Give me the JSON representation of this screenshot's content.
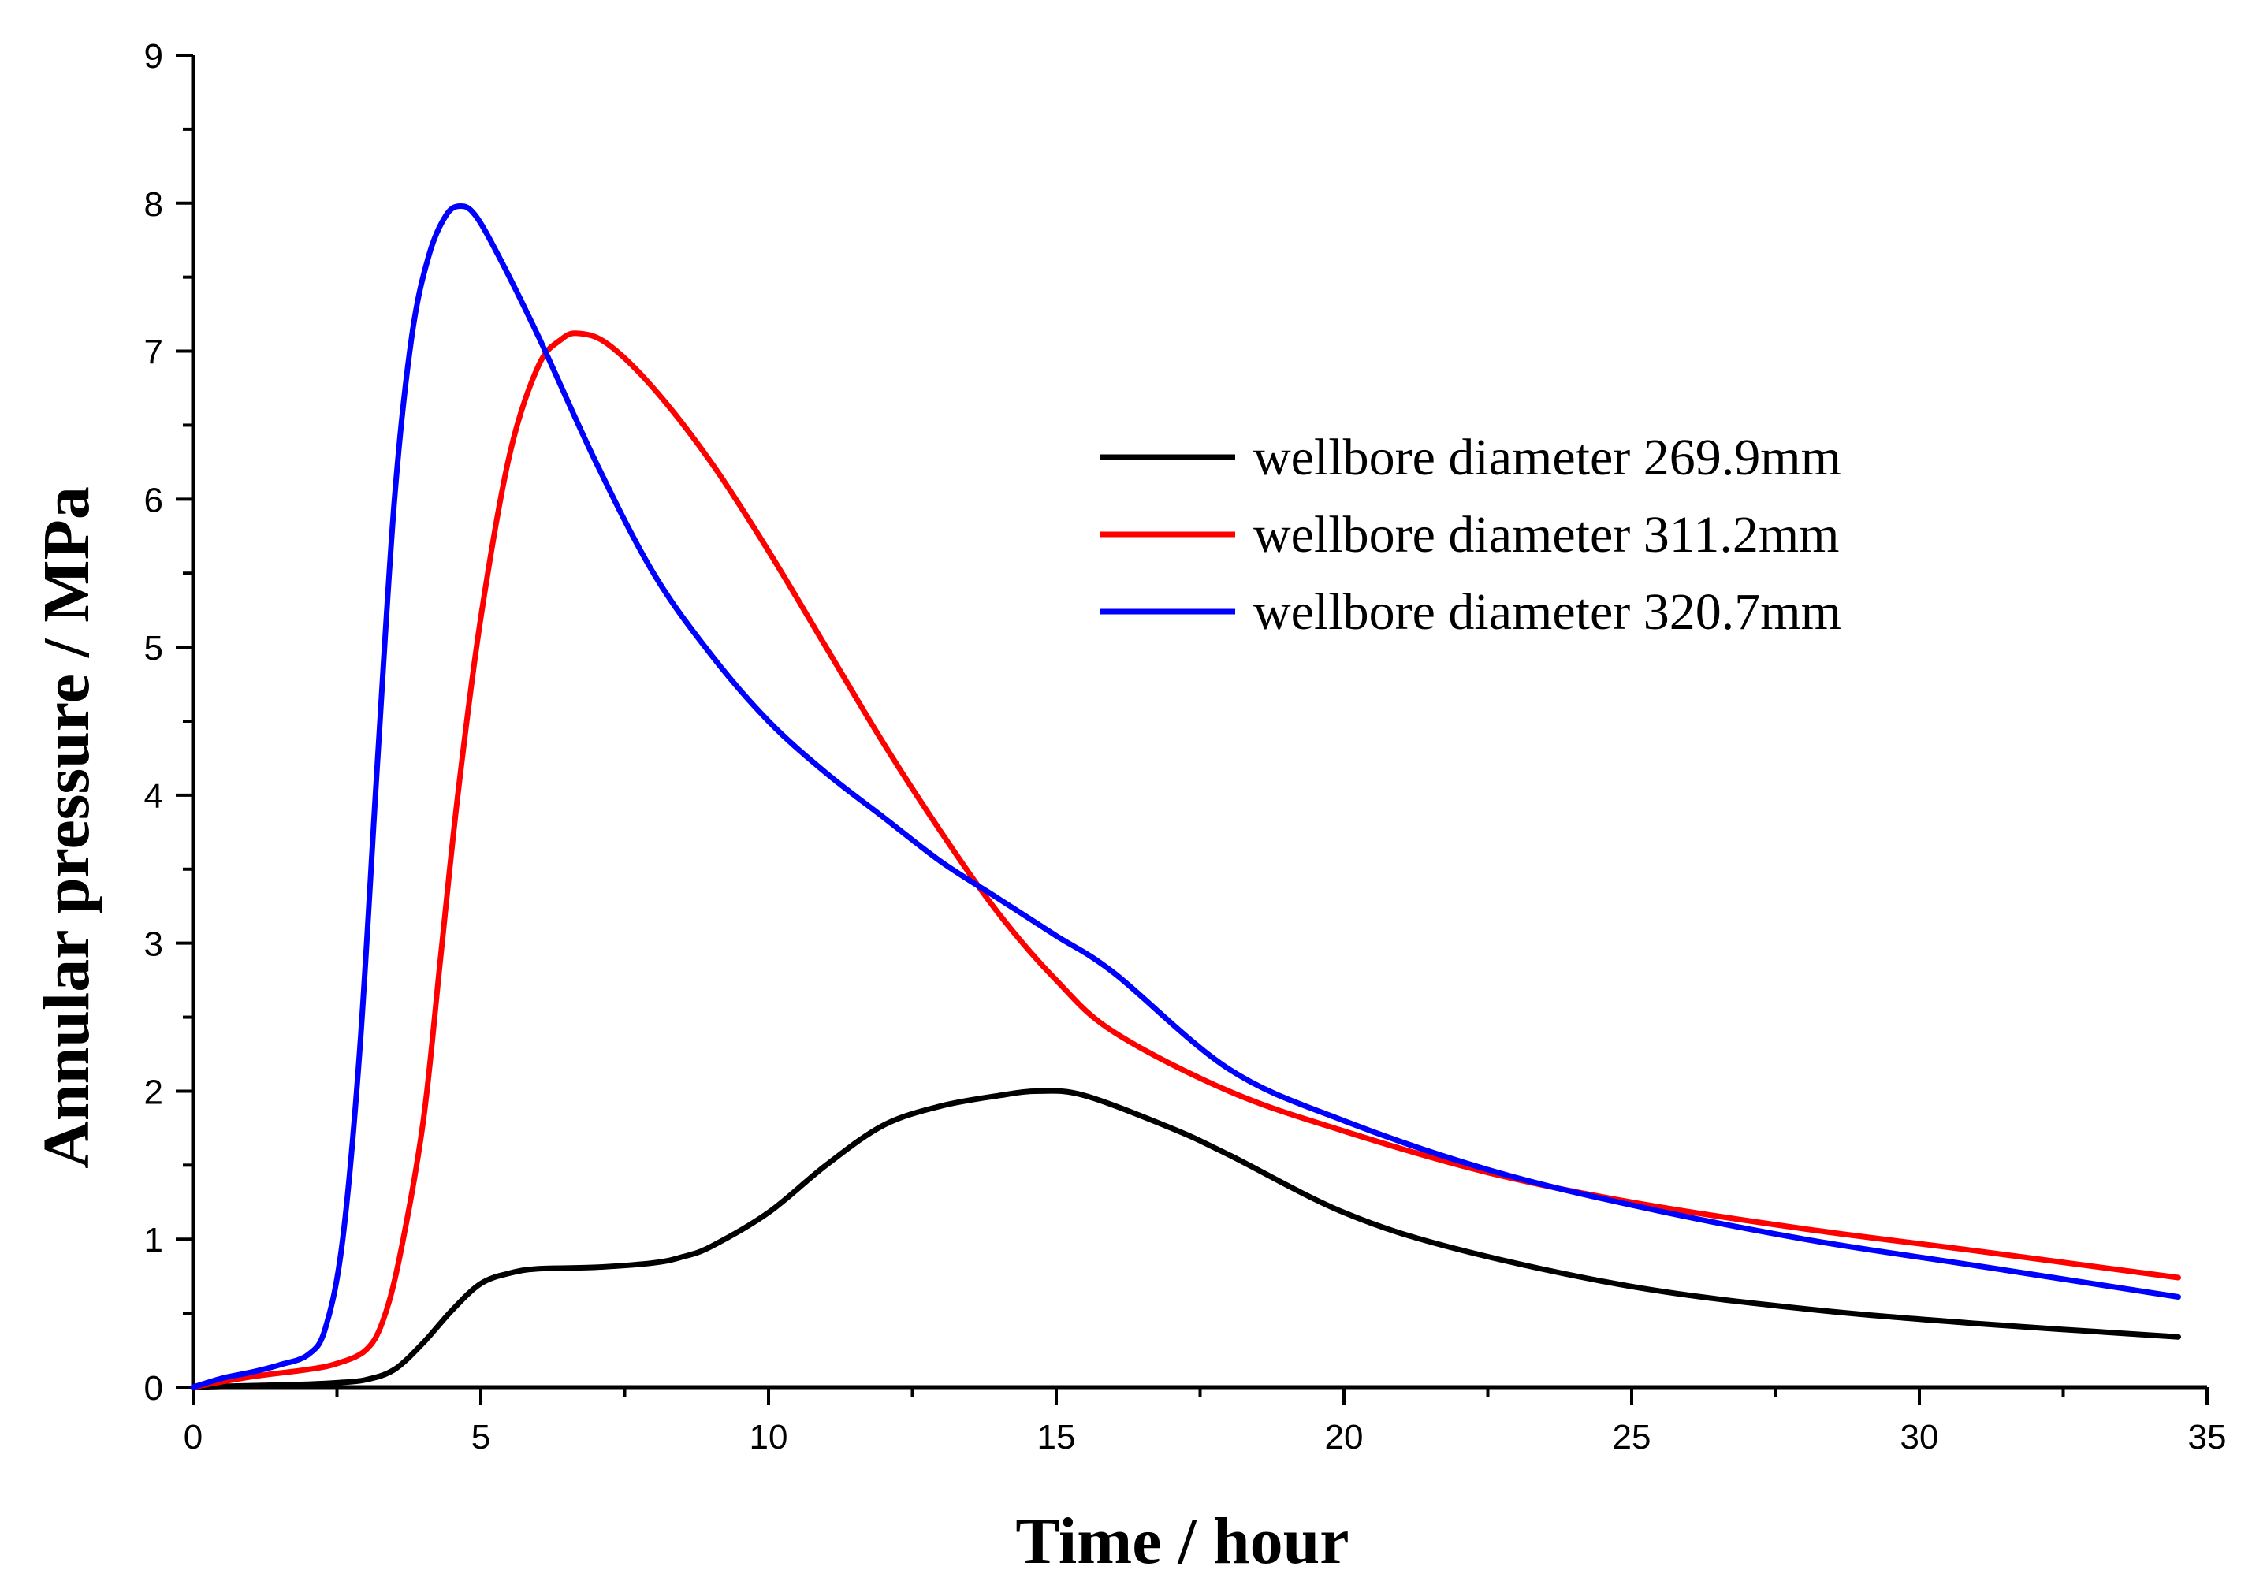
{
  "chart_data": {
    "type": "line",
    "title": "",
    "xlabel": "Time / hour",
    "ylabel": "Annular pressure / MPa",
    "xlim": [
      0,
      35
    ],
    "ylim": [
      0,
      9
    ],
    "xticks": [
      0,
      5,
      10,
      15,
      20,
      25,
      30,
      35
    ],
    "yticks": [
      0,
      1,
      2,
      3,
      4,
      5,
      6,
      7,
      8,
      9
    ],
    "xtick_labels": [
      "0",
      "5",
      "10",
      "15",
      "20",
      "25",
      "30",
      "35"
    ],
    "ytick_labels": [
      "0",
      "1",
      "2",
      "3",
      "4",
      "5",
      "6",
      "7",
      "8",
      "9"
    ],
    "grid": false,
    "legend_position": "upper-right",
    "series": [
      {
        "name": "wellbore diameter 269.9mm",
        "color": "#000000",
        "x": [
          0,
          1,
          2,
          2.5,
          3,
          3.5,
          4,
          4.5,
          5,
          5.5,
          6,
          7,
          8,
          8.5,
          9,
          10,
          11,
          12,
          13,
          14,
          14.7,
          15.5,
          17,
          18,
          20,
          22,
          25,
          28,
          31,
          34.5
        ],
        "y": [
          0,
          0.01,
          0.02,
          0.03,
          0.05,
          0.12,
          0.3,
          0.52,
          0.7,
          0.77,
          0.8,
          0.81,
          0.84,
          0.88,
          0.95,
          1.18,
          1.5,
          1.77,
          1.9,
          1.97,
          2.0,
          1.97,
          1.75,
          1.57,
          1.18,
          0.93,
          0.68,
          0.53,
          0.43,
          0.34
        ]
      },
      {
        "name": "wellbore diameter 311.2mm",
        "color": "#ff0000",
        "x": [
          0,
          1,
          2,
          2.5,
          3,
          3.3,
          3.6,
          4,
          4.3,
          4.6,
          5,
          5.5,
          6,
          6.4,
          6.7,
          7.2,
          8,
          9,
          10,
          11,
          12,
          13,
          14,
          15,
          16,
          18,
          20,
          22.5,
          25,
          28,
          31,
          34.5
        ],
        "y": [
          0,
          0.07,
          0.12,
          0.16,
          0.25,
          0.45,
          0.9,
          1.8,
          2.9,
          4.0,
          5.2,
          6.3,
          6.9,
          7.08,
          7.12,
          7.05,
          6.75,
          6.25,
          5.65,
          5.0,
          4.35,
          3.75,
          3.2,
          2.75,
          2.4,
          2.0,
          1.73,
          1.45,
          1.25,
          1.07,
          0.92,
          0.74
        ]
      },
      {
        "name": "wellbore diameter 320.7mm",
        "color": "#0000ff",
        "x": [
          0,
          0.5,
          1,
          1.5,
          2,
          2.3,
          2.6,
          2.9,
          3.2,
          3.5,
          3.8,
          4.1,
          4.4,
          4.65,
          4.9,
          5.3,
          6,
          7,
          8,
          9,
          10,
          11,
          12,
          13,
          14,
          15,
          16,
          18,
          20,
          22.5,
          25,
          28,
          31,
          34.5
        ],
        "y": [
          0,
          0.06,
          0.1,
          0.15,
          0.22,
          0.4,
          1.0,
          2.3,
          4.2,
          6.0,
          7.1,
          7.65,
          7.92,
          7.98,
          7.92,
          7.65,
          7.1,
          6.25,
          5.5,
          4.95,
          4.5,
          4.15,
          3.85,
          3.55,
          3.3,
          3.05,
          2.8,
          2.15,
          1.8,
          1.47,
          1.23,
          1.0,
          0.82,
          0.61
        ]
      }
    ]
  }
}
